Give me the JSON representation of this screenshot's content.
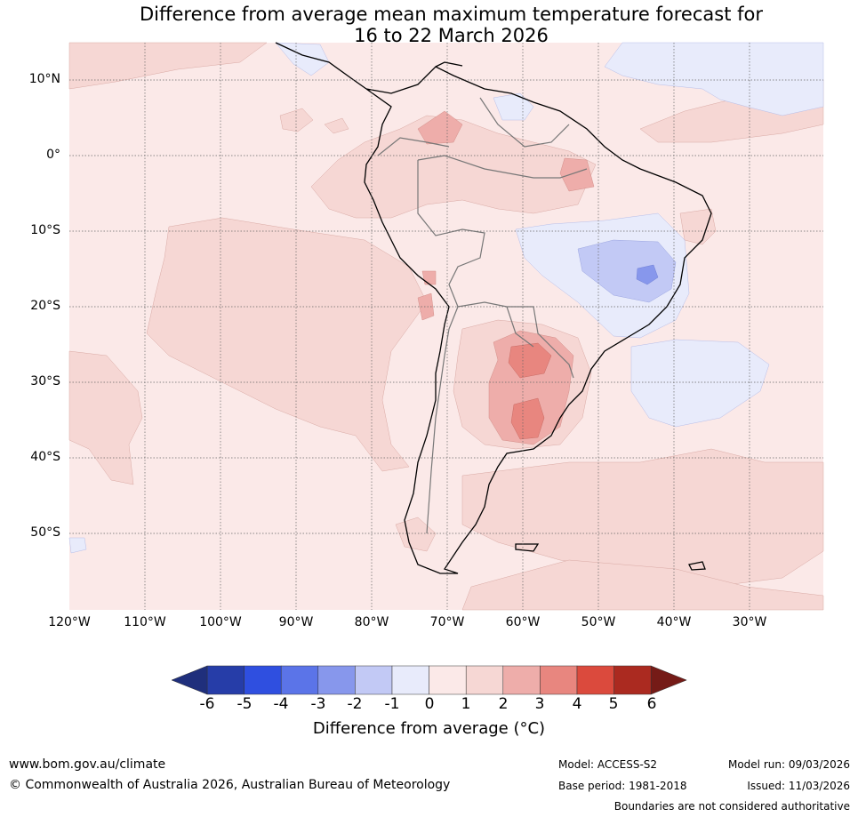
{
  "title": {
    "line1": "Difference from average mean maximum temperature forecast for",
    "line2": "16 to 22 March 2026"
  },
  "map": {
    "latitude_labels": [
      "10°N",
      "0°",
      "10°S",
      "20°S",
      "30°S",
      "40°S",
      "50°S"
    ],
    "longitude_labels": [
      "120°W",
      "110°W",
      "100°W",
      "90°W",
      "80°W",
      "70°W",
      "60°W",
      "50°W",
      "40°W",
      "30°W"
    ]
  },
  "legend": {
    "ticks": [
      "-6",
      "-5",
      "-4",
      "-3",
      "-2",
      "-1",
      "0",
      "1",
      "2",
      "3",
      "4",
      "5",
      "6"
    ],
    "colors": [
      "#263da8",
      "#2f4fe0",
      "#5b74e8",
      "#8797ec",
      "#c2c9f5",
      "#e8ebfb",
      "#fbe9e8",
      "#f6d7d4",
      "#eeadaa",
      "#e8867f",
      "#db4a3d",
      "#ab2a20"
    ],
    "under_color": "#1f2f7c",
    "over_color": "#751b17",
    "title": "Difference from average (°C)"
  },
  "footer": {
    "website": "www.bom.gov.au/climate",
    "copyright": "© Commonwealth of Australia 2026, Australian Bureau of Meteorology",
    "model": "Model: ACCESS-S2",
    "base_period": "Base period: 1981-2018",
    "model_run": "Model run: 09/03/2026",
    "issued": "Issued: 11/03/2026",
    "disclaimer": "Boundaries are not considered authoritative"
  }
}
